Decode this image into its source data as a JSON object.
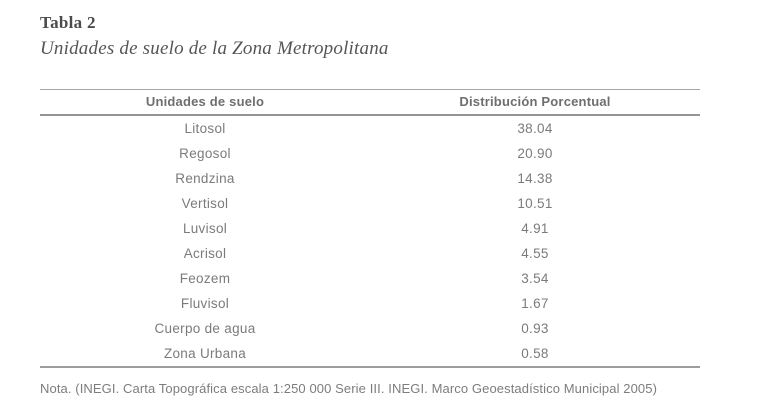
{
  "caption": {
    "label": "Tabla 2",
    "title": "Unidades de suelo de la Zona Metropolitana"
  },
  "table": {
    "columns": [
      "Unidades de suelo",
      "Distribución Porcentual"
    ],
    "rows": [
      [
        "Litosol",
        "38.04"
      ],
      [
        "Regosol",
        "20.90"
      ],
      [
        "Rendzina",
        "14.38"
      ],
      [
        "Vertisol",
        "10.51"
      ],
      [
        "Luvisol",
        "4.91"
      ],
      [
        "Acrisol",
        "4.55"
      ],
      [
        "Feozem",
        "3.54"
      ],
      [
        "Fluvisol",
        "1.67"
      ],
      [
        "Cuerpo de agua",
        "0.93"
      ],
      [
        "Zona Urbana",
        "0.58"
      ]
    ]
  },
  "note": "Nota. (INEGI. Carta Topográfica escala 1:250 000 Serie III. INEGI. Marco Geoestadístico Municipal 2005)",
  "colors": {
    "caption_text": "#4b4b4b",
    "body_text": "#7b7b7b",
    "rule_gray": "#9e9e9e",
    "background": "#ffffff"
  },
  "chart_data": {
    "type": "table",
    "title": "Unidades de suelo de la Zona Metropolitana",
    "categories": [
      "Litosol",
      "Regosol",
      "Rendzina",
      "Vertisol",
      "Luvisol",
      "Acrisol",
      "Feozem",
      "Fluvisol",
      "Cuerpo de agua",
      "Zona Urbana"
    ],
    "values": [
      38.04,
      20.9,
      14.38,
      10.51,
      4.91,
      4.55,
      3.54,
      1.67,
      0.93,
      0.58
    ],
    "value_label": "Distribución Porcentual",
    "category_label": "Unidades de suelo"
  }
}
